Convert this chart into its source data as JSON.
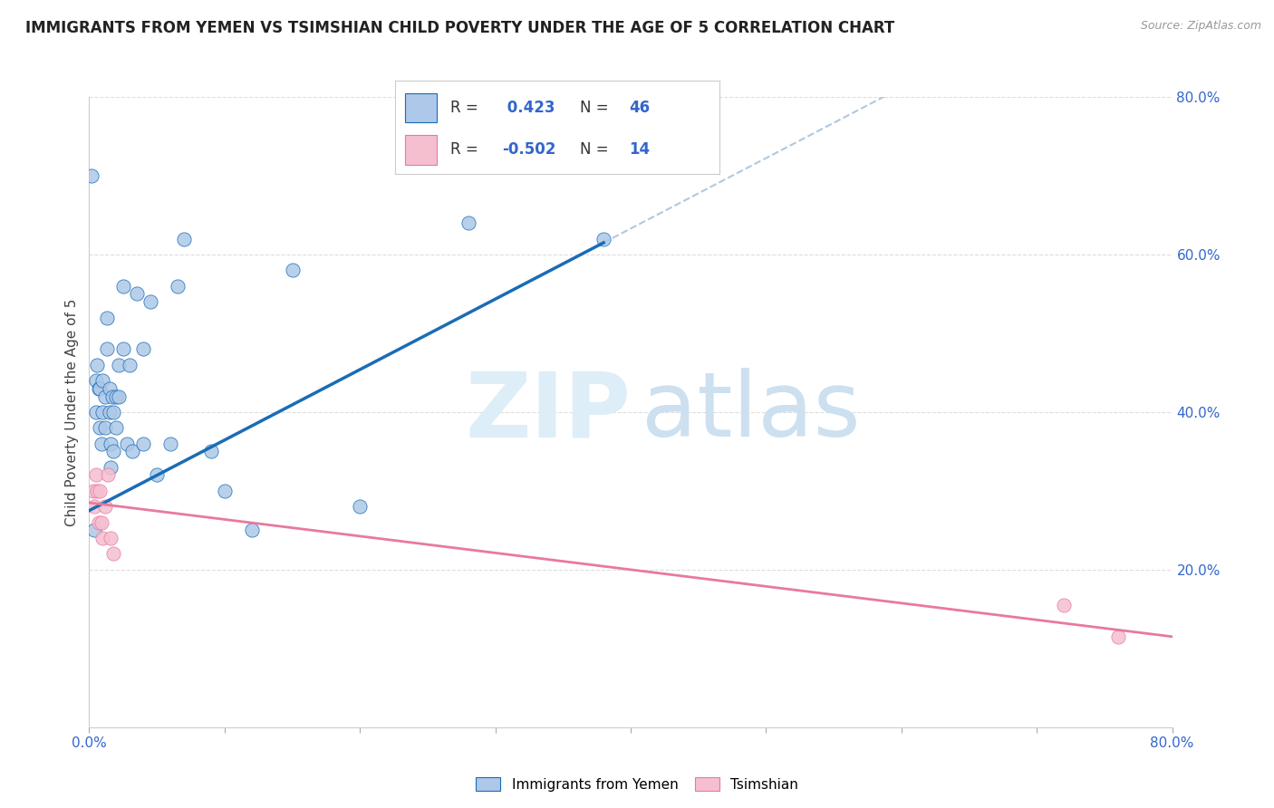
{
  "title": "IMMIGRANTS FROM YEMEN VS TSIMSHIAN CHILD POVERTY UNDER THE AGE OF 5 CORRELATION CHART",
  "source": "Source: ZipAtlas.com",
  "ylabel": "Child Poverty Under the Age of 5",
  "xlim": [
    0.0,
    0.8
  ],
  "ylim": [
    0.0,
    0.8
  ],
  "xticks": [
    0.0,
    0.1,
    0.2,
    0.3,
    0.4,
    0.5,
    0.6,
    0.7,
    0.8
  ],
  "xticklabels": [
    "0.0%",
    "",
    "",
    "",
    "",
    "",
    "",
    "",
    "80.0%"
  ],
  "yticks": [
    0.2,
    0.4,
    0.6,
    0.8
  ],
  "yticklabels_right": [
    "20.0%",
    "40.0%",
    "60.0%",
    "80.0%"
  ],
  "legend_labels": [
    "Immigrants from Yemen",
    "Tsimshian"
  ],
  "r_yemen": 0.423,
  "n_yemen": 46,
  "r_tsimshian": -0.502,
  "n_tsimshian": 14,
  "scatter_color_yemen": "#adc8e8",
  "scatter_color_tsimshian": "#f5bfd0",
  "line_color_yemen": "#1a6cb5",
  "line_color_tsimshian": "#e8799e",
  "line_color_dashed": "#b0c8e0",
  "scatter_yemen_x": [
    0.002,
    0.004,
    0.005,
    0.005,
    0.006,
    0.007,
    0.008,
    0.008,
    0.009,
    0.01,
    0.01,
    0.012,
    0.012,
    0.013,
    0.013,
    0.015,
    0.015,
    0.016,
    0.016,
    0.017,
    0.018,
    0.018,
    0.02,
    0.02,
    0.022,
    0.022,
    0.025,
    0.025,
    0.028,
    0.03,
    0.032,
    0.035,
    0.04,
    0.04,
    0.045,
    0.05,
    0.06,
    0.065,
    0.07,
    0.09,
    0.1,
    0.12,
    0.15,
    0.2,
    0.28,
    0.38
  ],
  "scatter_yemen_y": [
    0.7,
    0.25,
    0.44,
    0.4,
    0.46,
    0.43,
    0.43,
    0.38,
    0.36,
    0.44,
    0.4,
    0.42,
    0.38,
    0.52,
    0.48,
    0.43,
    0.4,
    0.36,
    0.33,
    0.42,
    0.4,
    0.35,
    0.42,
    0.38,
    0.46,
    0.42,
    0.56,
    0.48,
    0.36,
    0.46,
    0.35,
    0.55,
    0.48,
    0.36,
    0.54,
    0.32,
    0.36,
    0.56,
    0.62,
    0.35,
    0.3,
    0.25,
    0.58,
    0.28,
    0.64,
    0.62
  ],
  "scatter_tsimshian_x": [
    0.003,
    0.004,
    0.005,
    0.006,
    0.007,
    0.008,
    0.009,
    0.01,
    0.012,
    0.014,
    0.016,
    0.018,
    0.72,
    0.76
  ],
  "scatter_tsimshian_y": [
    0.3,
    0.28,
    0.32,
    0.3,
    0.26,
    0.3,
    0.26,
    0.24,
    0.28,
    0.32,
    0.24,
    0.22,
    0.155,
    0.115
  ],
  "line_yemen_x0": 0.0,
  "line_yemen_x1": 0.38,
  "line_dashed_x0": 0.38,
  "line_dashed_x1": 0.8,
  "line_tsimshian_x0": 0.0,
  "line_tsimshian_x1": 0.8,
  "line_yemen_y0": 0.275,
  "line_yemen_y1": 0.615,
  "line_tsimshian_y0": 0.285,
  "line_tsimshian_y1": 0.115
}
